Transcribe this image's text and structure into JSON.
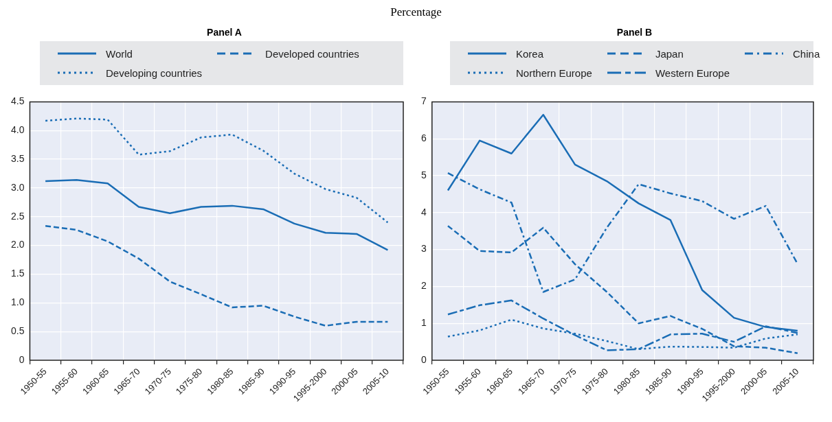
{
  "chart_data": [
    {
      "type": "line",
      "title": "Panel A",
      "annotations": [
        "Percentage"
      ],
      "categories": [
        "1950-55",
        "1955-60",
        "1960-65",
        "1965-70",
        "1970-75",
        "1975-80",
        "1980-85",
        "1985-90",
        "1990-95",
        "1995-2000",
        "2000-05",
        "2005-10"
      ],
      "series": [
        {
          "name": "World",
          "color": "#1a6db5",
          "line_style": "solid",
          "values": [
            3.12,
            3.14,
            3.08,
            2.67,
            2.56,
            2.67,
            2.69,
            2.63,
            2.38,
            2.22,
            2.2,
            1.92
          ]
        },
        {
          "name": "Developed countries",
          "color": "#1a6db5",
          "line_style": "dashed",
          "values": [
            2.34,
            2.27,
            2.07,
            1.77,
            1.37,
            1.15,
            0.92,
            0.95,
            0.76,
            0.6,
            0.67,
            0.67
          ]
        },
        {
          "name": "Developing countries",
          "color": "#1a6db5",
          "line_style": "dotted",
          "values": [
            4.17,
            4.21,
            4.19,
            3.58,
            3.64,
            3.88,
            3.93,
            3.65,
            3.25,
            2.98,
            2.83,
            2.4
          ]
        }
      ],
      "ylim": [
        0,
        4.5
      ],
      "yticks": [
        0,
        0.5,
        {
          "value": 1,
          "label": "1.0"
        },
        1.5,
        {
          "value": 2,
          "label": "2.0"
        },
        2.5,
        {
          "value": 3,
          "label": "3.0"
        },
        3.5,
        {
          "value": 4,
          "label": "4.0"
        },
        4.5
      ],
      "grid": true,
      "legend": "top",
      "marker": "none"
    },
    {
      "type": "line",
      "title": "Panel B",
      "categories": [
        "1950-55",
        "1955-60",
        "1960-65",
        "1965-70",
        "1970-75",
        "1975-80",
        "1980-85",
        "1985-90",
        "1990-95",
        "1995-2000",
        "2000-05",
        "2005-10"
      ],
      "series": [
        {
          "name": "Korea",
          "color": "#1a6db5",
          "line_style": "solid",
          "values": [
            4.6,
            5.95,
            5.6,
            6.65,
            5.3,
            4.85,
            4.25,
            3.8,
            1.9,
            1.15,
            0.9,
            0.8
          ]
        },
        {
          "name": "Japan",
          "color": "#1a6db5",
          "line_style": "dashed",
          "values": [
            3.64,
            2.96,
            2.92,
            3.59,
            2.6,
            1.85,
            1.0,
            1.2,
            0.85,
            0.38,
            0.34,
            0.19
          ]
        },
        {
          "name": "China",
          "color": "#1a6db5",
          "line_style": "dashdot",
          "values": [
            5.07,
            4.63,
            4.27,
            1.85,
            2.19,
            3.59,
            4.77,
            4.52,
            4.31,
            3.83,
            4.18,
            2.61
          ]
        },
        {
          "name": "Northern Europe",
          "color": "#1a6db5",
          "line_style": "dotted",
          "values": [
            0.64,
            0.81,
            1.1,
            0.86,
            0.72,
            0.52,
            0.3,
            0.37,
            0.36,
            0.34,
            0.59,
            0.7
          ]
        },
        {
          "name": "Western Europe",
          "color": "#1a6db5",
          "line_style": "longdashdot",
          "values": [
            1.24,
            1.49,
            1.62,
            1.13,
            0.68,
            0.27,
            0.3,
            0.7,
            0.72,
            0.5,
            0.92,
            0.74
          ]
        }
      ],
      "ylim": [
        0,
        7
      ],
      "yticks": [
        0,
        1,
        2,
        3,
        4,
        5,
        6,
        7
      ],
      "grid": true,
      "legend": "top",
      "marker": "none"
    }
  ]
}
